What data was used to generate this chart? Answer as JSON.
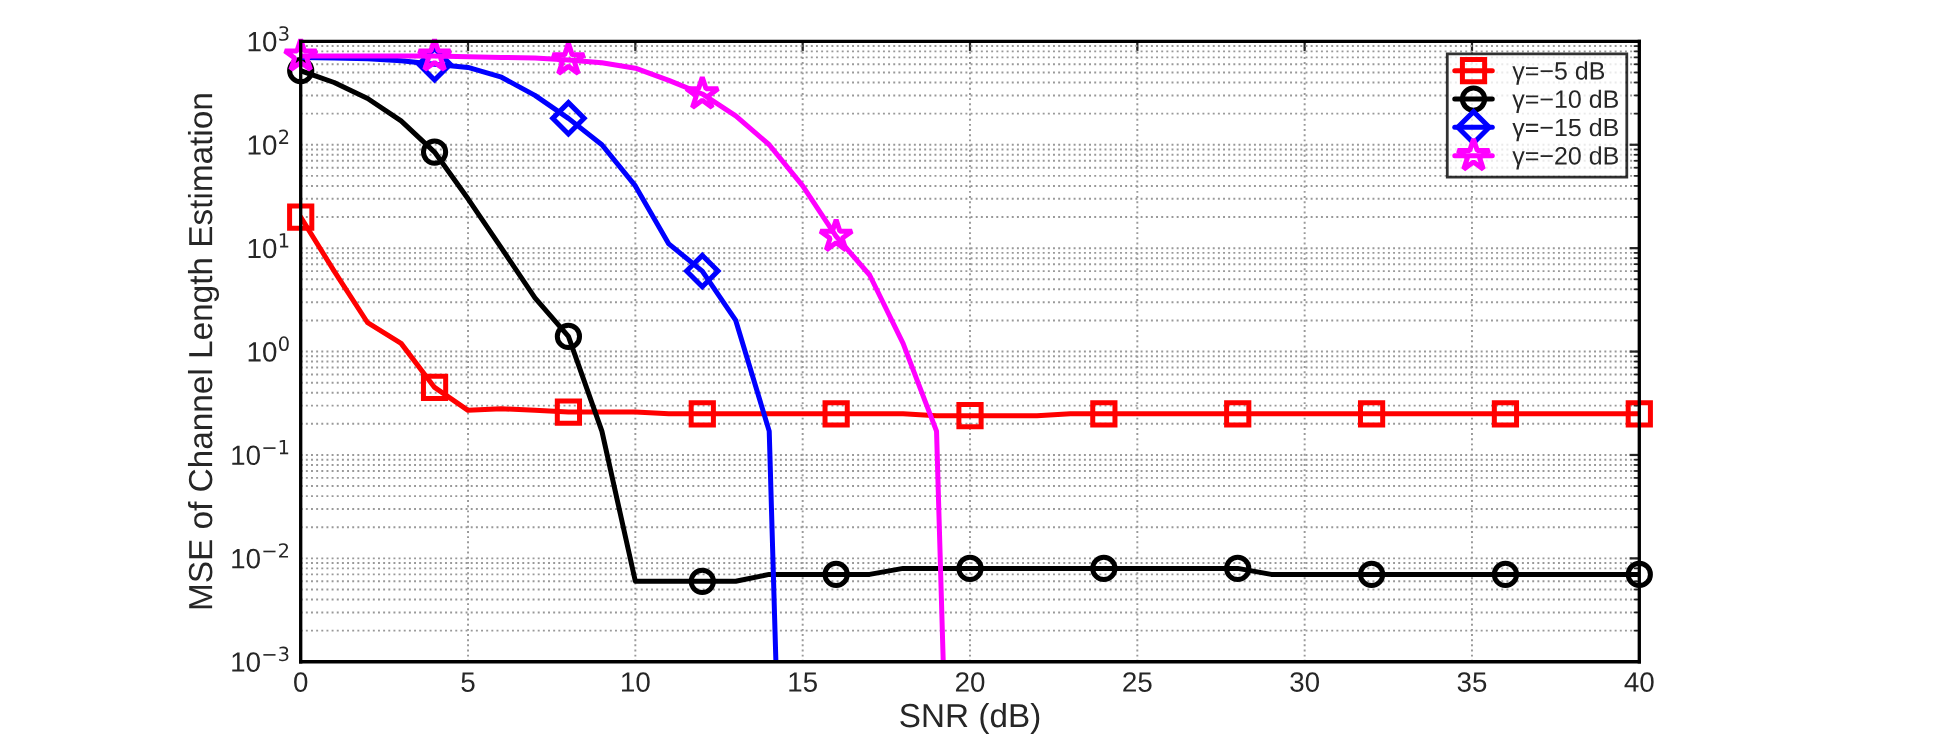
{
  "chart_data": {
    "type": "line",
    "xlabel": "SNR (dB)",
    "ylabel": "MSE of Channel Length Estimation",
    "log": "y",
    "grid": true,
    "legend": "top right",
    "line_style": "solid",
    "xlim": [
      0,
      40
    ],
    "xticks": [
      0,
      5,
      10,
      15,
      20,
      25,
      30,
      35,
      40
    ],
    "ylim": [
      0.001,
      1000
    ],
    "yticks": [
      {
        "value": 0.001,
        "label": "10$^{−3}$"
      },
      {
        "value": 0.01,
        "label": "10$^{−2}$"
      },
      {
        "value": 0.1,
        "label": "10$^{−1}$"
      },
      {
        "value": 1,
        "label": "10$^{0}$"
      },
      {
        "value": 10,
        "label": "10$^{1}$"
      },
      {
        "value": 100,
        "label": "10$^{2}$"
      },
      {
        "value": 1000,
        "label": "10$^{3}$"
      }
    ],
    "series": [
      {
        "name": "γ=−5 dB",
        "color": "#ff0000",
        "marker": "none",
        "x": [
          0,
          1,
          2,
          3,
          4,
          5,
          6,
          7,
          8,
          9,
          10,
          11,
          12,
          13,
          14,
          15,
          16,
          17,
          18,
          19,
          20,
          21,
          22,
          23,
          24,
          25,
          26,
          27,
          28,
          29,
          30,
          31,
          32,
          33,
          34,
          35,
          36,
          37,
          38,
          39,
          40
        ],
        "values": [
          20,
          6,
          1.9,
          1.2,
          0.45,
          0.27,
          0.28,
          0.27,
          0.26,
          0.26,
          0.26,
          0.25,
          0.25,
          0.25,
          0.25,
          0.25,
          0.25,
          0.25,
          0.25,
          0.24,
          0.24,
          0.24,
          0.24,
          0.25,
          0.25,
          0.25,
          0.25,
          0.25,
          0.25,
          0.25,
          0.25,
          0.25,
          0.25,
          0.25,
          0.25,
          0.25,
          0.25,
          0.25,
          0.25,
          0.25,
          0.25
        ]
      },
      {
        "type": "scatter",
        "color": "#ff0000",
        "marker": "square",
        "x": [
          0,
          4,
          8,
          12,
          16,
          20,
          24,
          28,
          32,
          36,
          40
        ],
        "values": [
          20,
          0.45,
          0.26,
          0.25,
          0.25,
          0.24,
          0.25,
          0.25,
          0.25,
          0.25,
          0.25
        ]
      },
      {
        "name": "γ=−10 dB",
        "color": "#000000",
        "marker": "none",
        "x": [
          0,
          1,
          2,
          3,
          4,
          5,
          6,
          7,
          8,
          9,
          10,
          11,
          12,
          13,
          14,
          15,
          16,
          17,
          18,
          19,
          20,
          21,
          22,
          23,
          24,
          25,
          26,
          27,
          28,
          29,
          30,
          31,
          32,
          33,
          34,
          35,
          36,
          37,
          38,
          39,
          40
        ],
        "values": [
          520,
          400,
          280,
          170,
          85,
          30,
          10,
          3.3,
          1.4,
          0.17,
          0.006,
          0.006,
          0.006,
          0.006,
          0.007,
          0.007,
          0.007,
          0.007,
          0.008,
          0.008,
          0.008,
          0.008,
          0.008,
          0.008,
          0.008,
          0.008,
          0.008,
          0.008,
          0.008,
          0.007,
          0.007,
          0.007,
          0.007,
          0.007,
          0.007,
          0.007,
          0.007,
          0.007,
          0.007,
          0.007,
          0.007
        ]
      },
      {
        "type": "scatter",
        "color": "#000000",
        "marker": "circle",
        "x": [
          0,
          4,
          8,
          12,
          16,
          20,
          24,
          28,
          32,
          36,
          40
        ],
        "values": [
          520,
          85,
          1.4,
          0.006,
          0.007,
          0.008,
          0.008,
          0.008,
          0.007,
          0.007,
          0.007
        ]
      },
      {
        "name": "γ=−15 dB",
        "color": "#0000ff",
        "marker": "none",
        "x": [
          0,
          1,
          2,
          3,
          4,
          5,
          6,
          7,
          8,
          9,
          10,
          11,
          12,
          13,
          14,
          14.2
        ],
        "values": [
          700,
          690,
          680,
          650,
          600,
          560,
          450,
          300,
          180,
          100,
          40,
          11,
          6,
          2,
          0.17,
          0.001
        ]
      },
      {
        "type": "scatter",
        "color": "#0000ff",
        "marker": "diamond",
        "x": [
          4,
          8,
          12
        ],
        "values": [
          600,
          180,
          6
        ]
      },
      {
        "name": "γ=−20 dB",
        "color": "#ff00ff",
        "marker": "none",
        "x": [
          0,
          1,
          2,
          3,
          4,
          5,
          6,
          7,
          8,
          9,
          10,
          11,
          12,
          13,
          14,
          15,
          16,
          17,
          18,
          19,
          19.2
        ],
        "values": [
          720,
          720,
          720,
          720,
          720,
          710,
          700,
          690,
          660,
          620,
          550,
          420,
          310,
          190,
          100,
          40,
          13,
          5.5,
          1.2,
          0.17,
          0.001
        ]
      },
      {
        "type": "scatter",
        "color": "#ff00ff",
        "marker": "star",
        "x": [
          0,
          4,
          8,
          12,
          16
        ],
        "values": [
          720,
          720,
          660,
          310,
          13
        ]
      }
    ]
  }
}
